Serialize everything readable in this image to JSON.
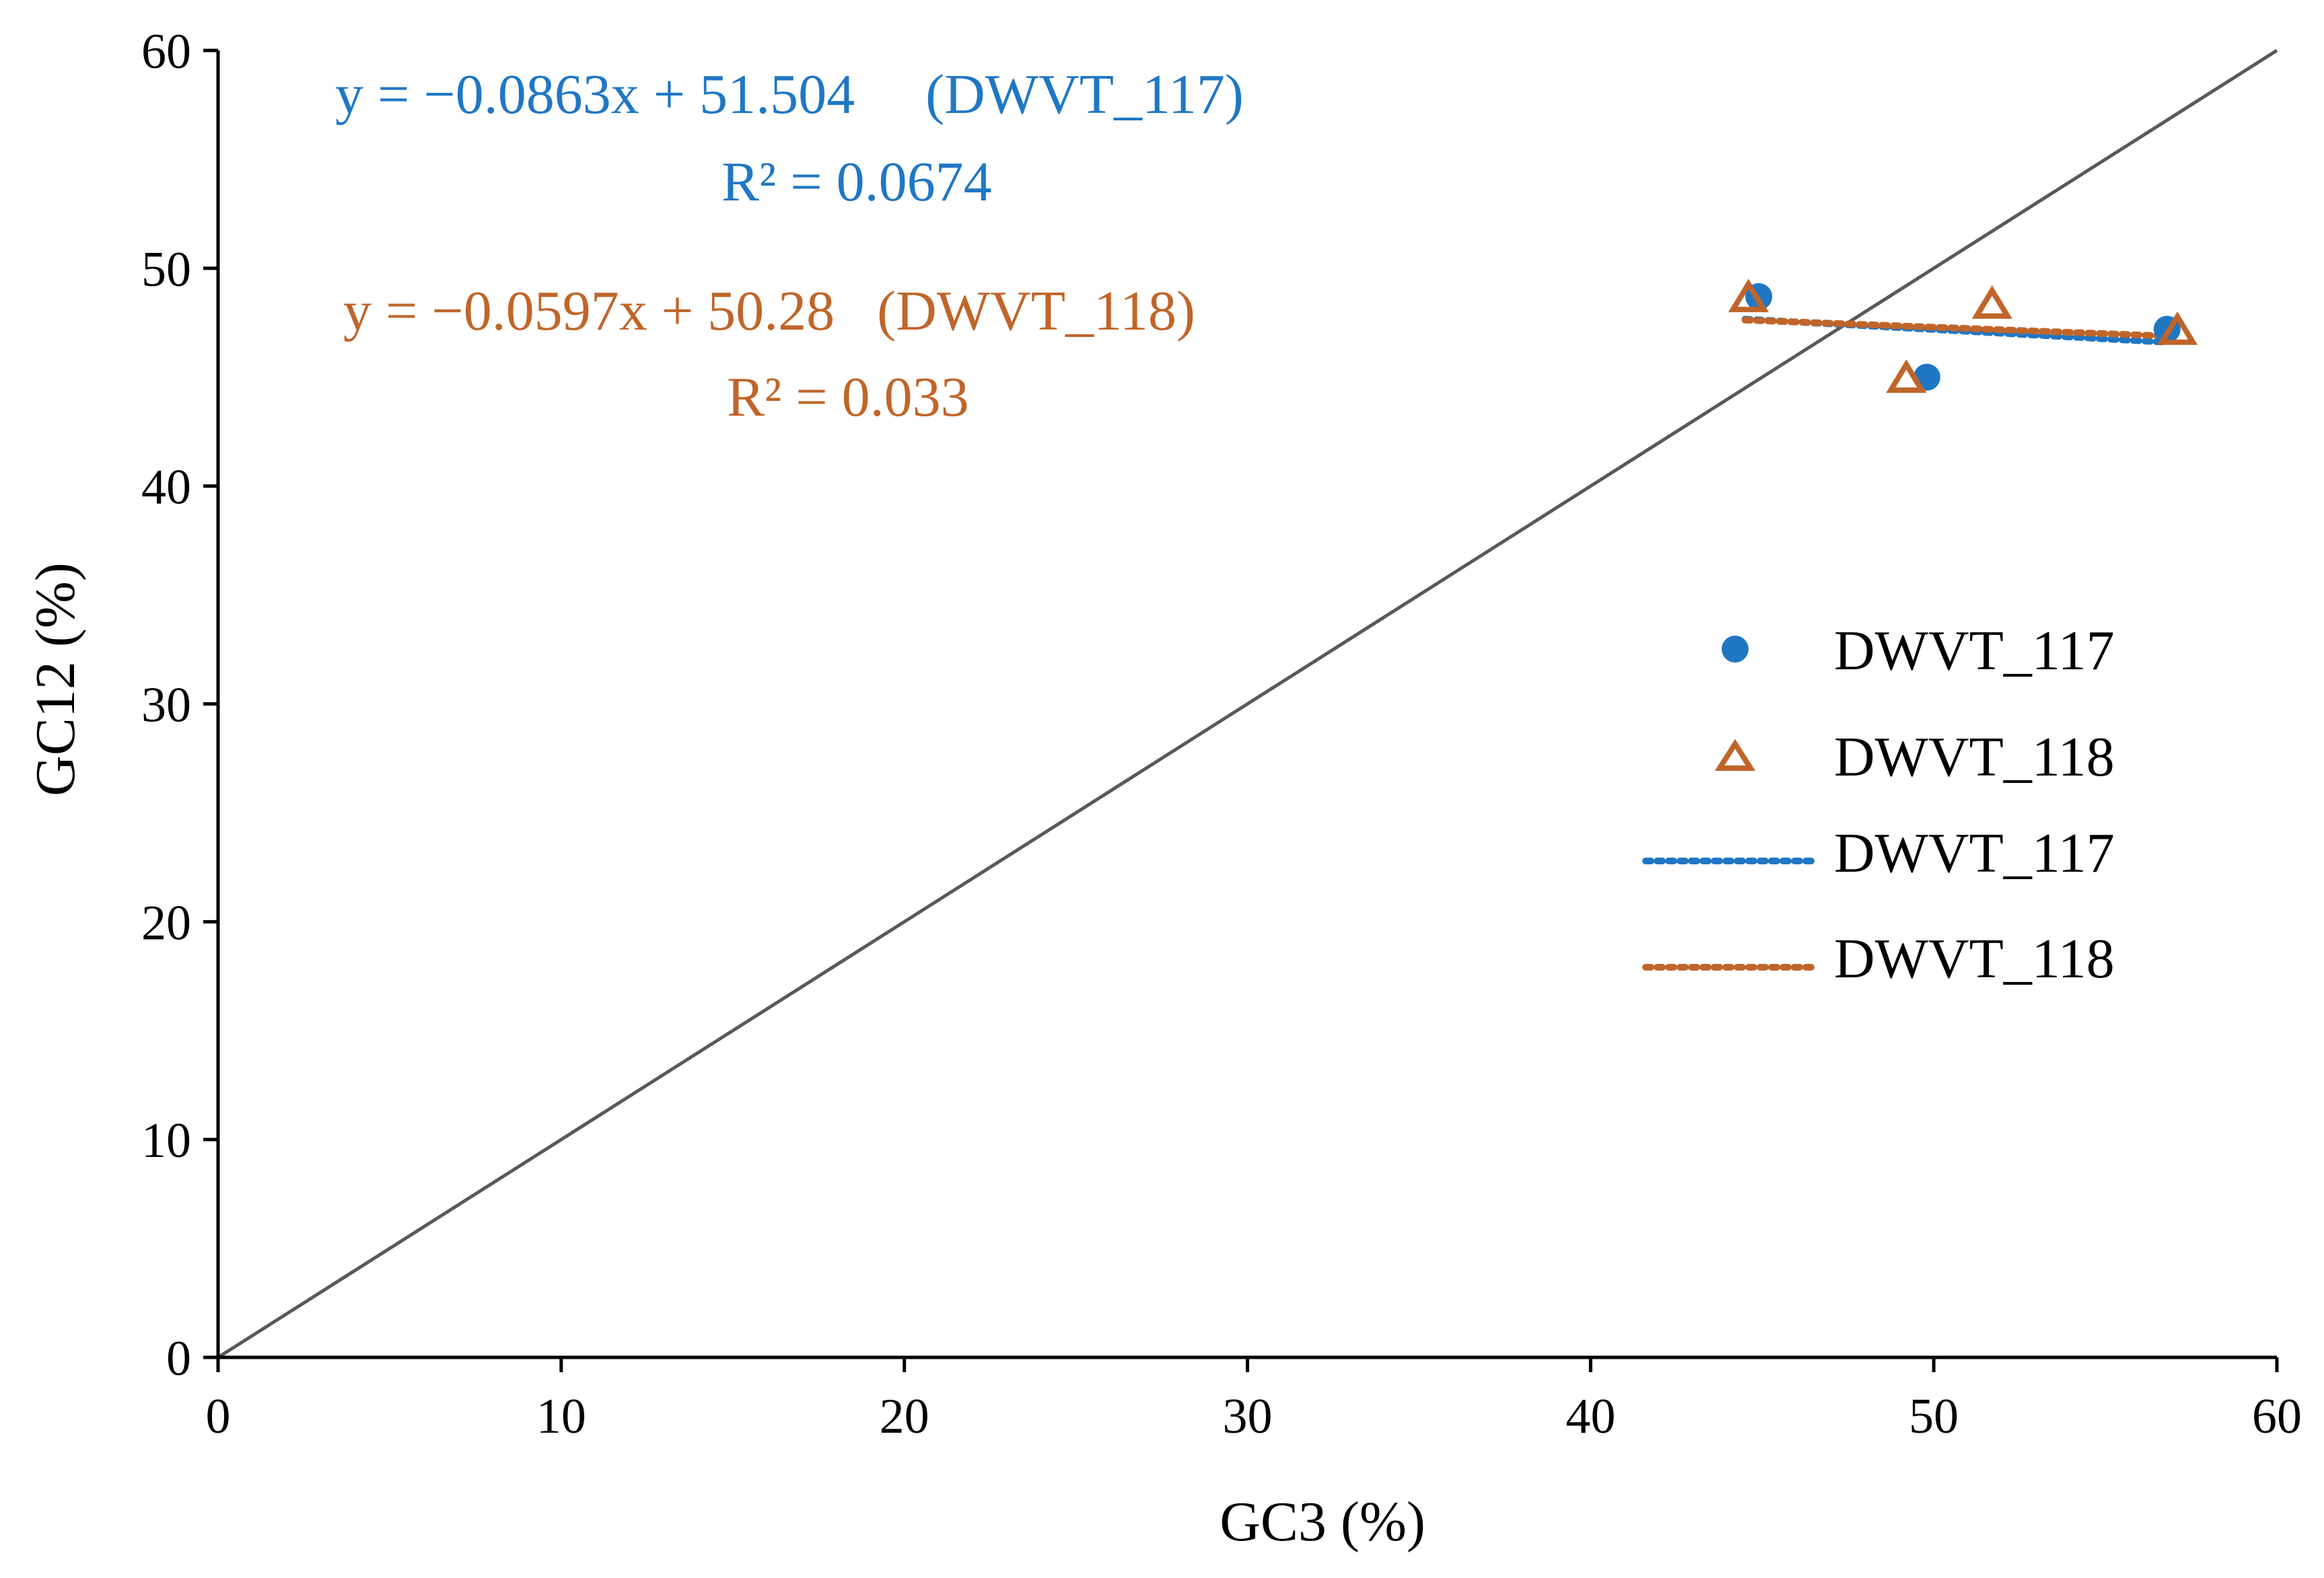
{
  "chart_data": {
    "type": "scatter",
    "xlabel": "GC3 (%)",
    "ylabel": "GC12 (%)",
    "xlim": [
      0,
      60
    ],
    "ylim": [
      0,
      60
    ],
    "x_ticks": [
      0,
      10,
      20,
      30,
      40,
      50,
      60
    ],
    "y_ticks": [
      0,
      10,
      20,
      30,
      40,
      50,
      60
    ],
    "x_tick_labels": [
      "0",
      "10",
      "20",
      "30",
      "40",
      "50",
      "60"
    ],
    "y_tick_labels": [
      "0",
      "10",
      "20",
      "30",
      "40",
      "50",
      "60"
    ],
    "grid": false,
    "reference_line": {
      "label": "y = x",
      "x": [
        0,
        60
      ],
      "y": [
        0,
        60
      ],
      "color": "#595959"
    },
    "series": [
      {
        "name": "DWVT_117",
        "marker": "circle",
        "color": "#1f77c4",
        "x": [
          44.9,
          49.8,
          56.8
        ],
        "y": [
          48.7,
          45.0,
          47.2
        ],
        "trendline": {
          "name": "DWVT_117",
          "style": "dotted",
          "slope": -0.0863,
          "intercept": 51.504,
          "x_range": [
            44.5,
            56.8
          ],
          "equation": "y = −0.0863x + 51.504     (DWVT_117)",
          "r2": "R² = 0.0674"
        }
      },
      {
        "name": "DWVT_118",
        "marker": "triangle-open",
        "color": "#c0652a",
        "x": [
          44.6,
          49.2,
          51.7,
          57.1
        ],
        "y": [
          48.6,
          44.9,
          48.3,
          47.1
        ],
        "trendline": {
          "name": "DWVT_118",
          "style": "dotted",
          "slope": -0.0597,
          "intercept": 50.28,
          "x_range": [
            44.5,
            57.1
          ],
          "equation": "y = −0.0597x + 50.28   (DWVT_118)",
          "r2": "R² = 0.033"
        }
      }
    ],
    "legend": {
      "position": "right-middle",
      "entries": [
        "DWVT_117",
        "DWVT_118",
        "DWVT_117",
        "DWVT_118"
      ]
    }
  }
}
